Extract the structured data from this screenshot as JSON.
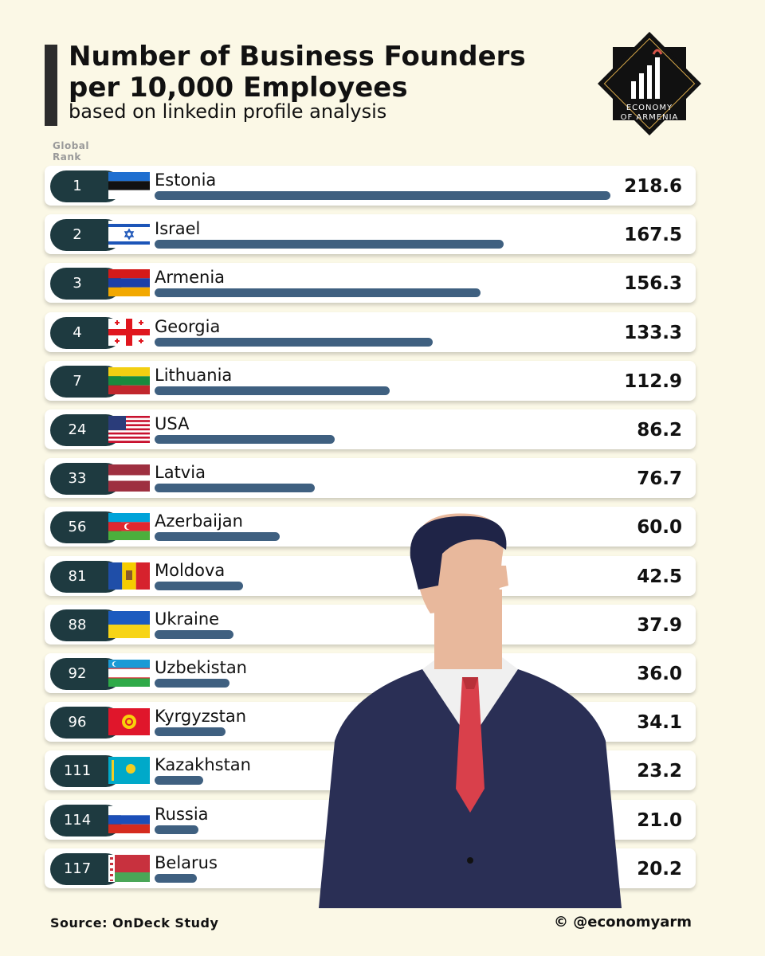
{
  "header": {
    "title_line1": "Number of Business Founders",
    "title_line2": "per 10,000 Employees",
    "subtitle": "based on linkedin profile analysis",
    "rank_label_line1": "Global",
    "rank_label_line2": "Rank"
  },
  "logo": {
    "line1": "ECONOMY",
    "line2": "OF ARMENIA"
  },
  "footer": {
    "source": "Source: OnDeck Study",
    "handle": "© @economyarm"
  },
  "colors": {
    "background": "#fbf8e6",
    "bar": "#3f6080",
    "rank_pill": "#1e3a40"
  },
  "chart_data": {
    "type": "bar",
    "orientation": "horizontal",
    "title": "Number of Business Founders per 10,000 Employees",
    "subtitle": "based on linkedin profile analysis",
    "xlim": [
      0,
      218.6
    ],
    "categories": [
      "Estonia",
      "Israel",
      "Armenia",
      "Georgia",
      "Lithuania",
      "USA",
      "Latvia",
      "Azerbaijan",
      "Moldova",
      "Ukraine",
      "Uzbekistan",
      "Kyrgyzstan",
      "Kazakhstan",
      "Russia",
      "Belarus"
    ],
    "ranks": [
      "1",
      "2",
      "3",
      "4",
      "7",
      "24",
      "33",
      "56",
      "81",
      "88",
      "92",
      "96",
      "111",
      "114",
      "117"
    ],
    "values": [
      218.6,
      167.5,
      156.3,
      133.3,
      112.9,
      86.2,
      76.7,
      60.0,
      42.5,
      37.9,
      36.0,
      34.1,
      23.2,
      21.0,
      20.2
    ],
    "value_labels": [
      "218.6",
      "167.5",
      "156.3",
      "133.3",
      "112.9",
      "86.2",
      "76.7",
      "60.0",
      "42.5",
      "37.9",
      "36.0",
      "34.1",
      "23.2",
      "21.0",
      "20.2"
    ],
    "flags": [
      "flag-estonia-icon",
      "flag-israel-icon",
      "flag-armenia-icon",
      "flag-georgia-icon",
      "flag-lithuania-icon",
      "flag-usa-icon",
      "flag-latvia-icon",
      "flag-azerbaijan-icon",
      "flag-moldova-icon",
      "flag-ukraine-icon",
      "flag-uzbekistan-icon",
      "flag-kyrgyzstan-icon",
      "flag-kazakhstan-icon",
      "flag-russia-icon",
      "flag-belarus-icon"
    ]
  }
}
